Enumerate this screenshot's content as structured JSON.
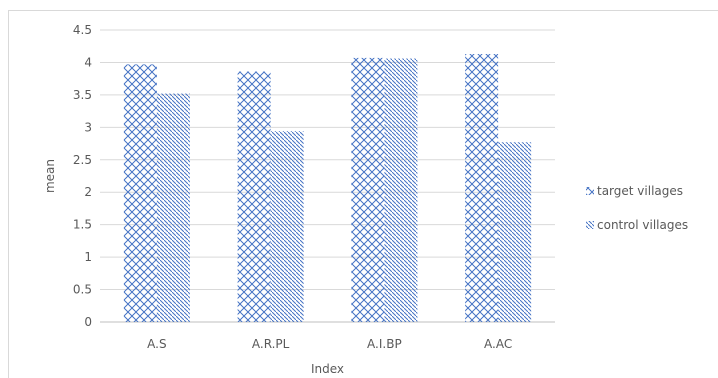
{
  "chart_data": {
    "type": "bar",
    "categories": [
      "A.S",
      "A.R.PL",
      "A.I.BP",
      "A.AC"
    ],
    "series": [
      {
        "name": "target villages",
        "values": [
          3.97,
          3.86,
          4.07,
          4.13
        ],
        "pattern": "crosshatch",
        "color": "#4472c4"
      },
      {
        "name": "control villages",
        "values": [
          3.52,
          2.94,
          4.06,
          2.77
        ],
        "pattern": "diagonal",
        "color": "#4472c4"
      }
    ],
    "xlabel": "Index",
    "ylabel": "mean",
    "ylim": [
      0,
      4.5
    ],
    "yticks": [
      "0",
      "0.5",
      "1",
      "1.5",
      "2",
      "2.5",
      "3",
      "3.5",
      "4",
      "4.5"
    ],
    "grid": true,
    "legend": "right"
  }
}
